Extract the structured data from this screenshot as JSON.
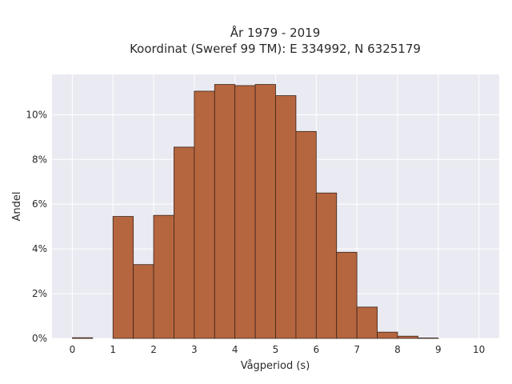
{
  "chart_data": {
    "type": "bar",
    "title_line1": "År 1979 - 2019",
    "title_line2": "Koordinat (Sweref 99 TM): E 334992, N 6325179",
    "xlabel": "Vågperiod (s)",
    "ylabel": "Andel",
    "xlim": [
      -0.5,
      10.5
    ],
    "ylim": [
      0,
      11.8
    ],
    "x_ticks": [
      0,
      1,
      2,
      3,
      4,
      5,
      6,
      7,
      8,
      9,
      10
    ],
    "x_tick_labels": [
      "0",
      "1",
      "2",
      "3",
      "4",
      "5",
      "6",
      "7",
      "8",
      "9",
      "10"
    ],
    "y_ticks": [
      0,
      2,
      4,
      6,
      8,
      10
    ],
    "y_tick_labels": [
      "0%",
      "2%",
      "4%",
      "6%",
      "8%",
      "10%"
    ],
    "bin_width": 0.5,
    "bin_starts": [
      0,
      0.5,
      1,
      1.5,
      2,
      2.5,
      3,
      3.5,
      4,
      4.5,
      5,
      5.5,
      6,
      6.5,
      7,
      7.5,
      8,
      8.5,
      9,
      9.5
    ],
    "values": [
      0.03,
      0,
      5.45,
      3.3,
      5.5,
      8.55,
      11.05,
      11.35,
      11.3,
      11.35,
      10.85,
      9.25,
      6.5,
      3.85,
      1.4,
      0.28,
      0.1,
      0.02,
      0,
      0
    ],
    "grid": true,
    "colors": {
      "bar_fill": "#b5663f",
      "bar_edge": "#3a2418",
      "plot_bg": "#eaeaf2",
      "grid": "#ffffff"
    }
  }
}
